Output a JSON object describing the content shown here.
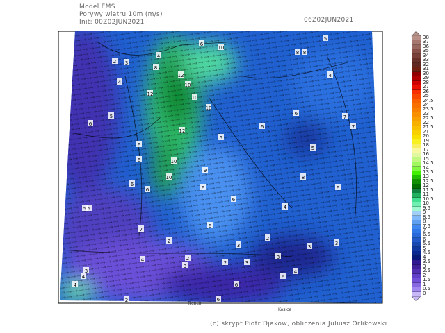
{
  "header": {
    "model": "Model EMS",
    "variable": "Porywy wiatru 10m (m/s)",
    "init": "Init: 00Z02JUN2021",
    "valid": "06Z02JUN2021"
  },
  "footer": "(c) skrypt Piotr Djakow, obliczenia Juliusz Orlikowski",
  "cities": [
    "Kosice",
    "Trencin"
  ],
  "map_labels": [
    "8",
    "2",
    "3",
    "4",
    "6",
    "5",
    "4",
    "8",
    "4",
    "8",
    "12",
    "10",
    "12",
    "10",
    "10",
    "10",
    "10",
    "9",
    "12",
    "10",
    "6",
    "7",
    "7",
    "6",
    "5",
    "6",
    "5",
    "6",
    "5",
    "6",
    "8",
    "6",
    "6",
    "6",
    "5",
    "6",
    "5",
    "6",
    "4",
    "6",
    "7",
    "3",
    "2",
    "3",
    "3",
    "3",
    "2",
    "2",
    "2",
    "3",
    "3",
    "4",
    "4",
    "4",
    "3",
    "4",
    "6",
    "6",
    "6",
    "2"
  ],
  "colorbar": {
    "labels": [
      "38",
      "37",
      "36",
      "35",
      "34",
      "33",
      "32",
      "31",
      "30",
      "29",
      "28",
      "27",
      "26",
      "25",
      "24.5",
      "24",
      "23.5",
      "23",
      "22.5",
      "22",
      "21.5",
      "21",
      "20",
      "19",
      "18",
      "17",
      "16",
      "15",
      "14.5",
      "14",
      "13.5",
      "13",
      "12.5",
      "12",
      "11.5",
      "11",
      "10.5",
      "10",
      "9.5",
      "9",
      "8.5",
      "8",
      "7.5",
      "7",
      "6.5",
      "6",
      "5.5",
      "5",
      "4.5",
      "4",
      "3.5",
      "3",
      "2.5",
      "2",
      "1.5",
      "1",
      "0.5",
      "0"
    ],
    "colors": [
      "#b89088",
      "#a87870",
      "#986860",
      "#885048",
      "#784038",
      "#683028",
      "#602820",
      "#702010",
      "#900000",
      "#b00000",
      "#d00000",
      "#e81000",
      "#f83000",
      "#f84800",
      "#f86000",
      "#f87000",
      "#f88000",
      "#f89000",
      "#f8a000",
      "#f8b000",
      "#f8c000",
      "#f8d000",
      "#f8e000",
      "#f8f020",
      "#f8f060",
      "#f8f8a0",
      "#e0f8a0",
      "#c0f880",
      "#a0f860",
      "#80f840",
      "#40f000",
      "#20c000",
      "#109000",
      "#007000",
      "#108040",
      "#20b060",
      "#40e090",
      "#70f0b0",
      "#a0f8d0",
      "#a0d0f8",
      "#80b8f8",
      "#60a0f0",
      "#4088f0",
      "#3078e8",
      "#2868d8",
      "#2058c8",
      "#1848b0",
      "#1038a0",
      "#082890",
      "#081878",
      "#301890",
      "#402098",
      "#5030b0",
      "#6040c8",
      "#7050d8",
      "#8868e0",
      "#a088f0",
      "#c8b8f8"
    ]
  }
}
